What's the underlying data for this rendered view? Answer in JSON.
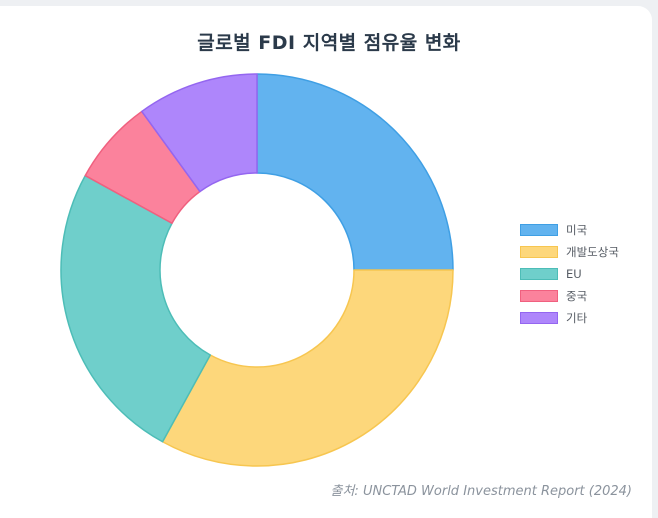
{
  "title": "글로벌 FDI 지역별 점유율 변화",
  "source": "출처: UNCTAD World Investment Report (2024)",
  "colors": {
    "fills": [
      "#62b3ef",
      "#fdd77b",
      "#6fcfcb",
      "#fb829c",
      "#ae86fb"
    ],
    "borders": [
      "#3f9fe4",
      "#f7c650",
      "#4dbdb7",
      "#f0607f",
      "#9466f0"
    ]
  },
  "chart_data": {
    "type": "pie",
    "variant": "doughnut",
    "title": "글로벌 FDI 지역별 점유율 변화",
    "labels": [
      "미국",
      "개발도상국",
      "EU",
      "중국",
      "기타"
    ],
    "values": [
      25,
      33,
      25,
      7,
      10
    ],
    "legend": "right"
  }
}
